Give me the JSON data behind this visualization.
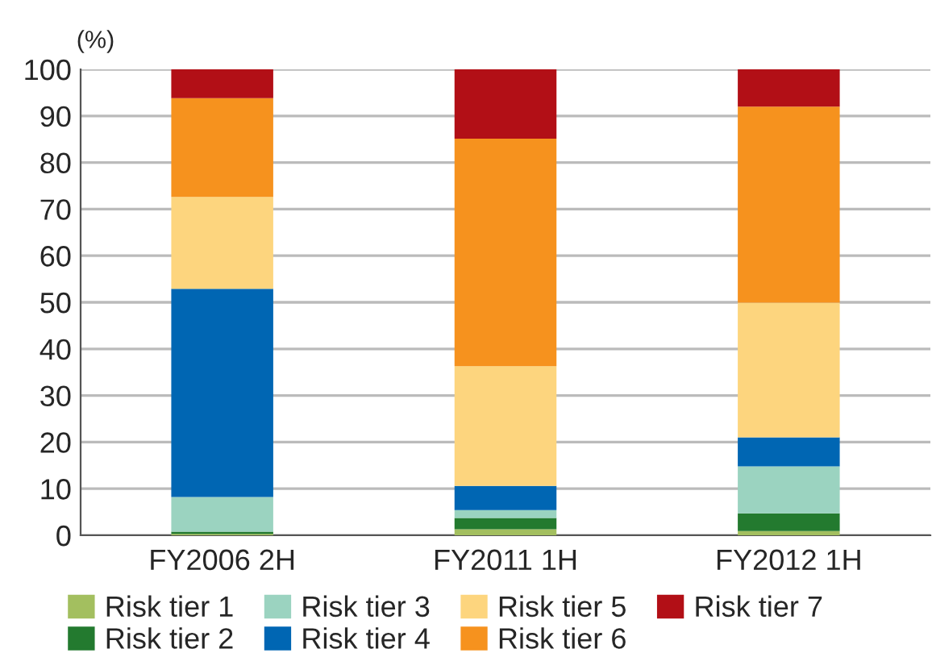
{
  "chart_data": {
    "type": "bar",
    "stacked": true,
    "ylabel": "(%)",
    "categories": [
      "FY2006 2H",
      "FY2011 1H",
      "FY2012 1H"
    ],
    "series": [
      {
        "name": "Risk tier 1",
        "color": "#a3bf5f",
        "values": [
          0.3,
          1.3,
          0.9
        ]
      },
      {
        "name": "Risk tier 2",
        "color": "#237a2f",
        "values": [
          0.5,
          2.4,
          3.8
        ]
      },
      {
        "name": "Risk tier 3",
        "color": "#9bd3c0",
        "values": [
          7.4,
          1.7,
          10.1
        ]
      },
      {
        "name": "Risk tier 4",
        "color": "#0066b3",
        "values": [
          44.7,
          5.2,
          6.2
        ]
      },
      {
        "name": "Risk tier 5",
        "color": "#fdd57e",
        "values": [
          19.7,
          25.7,
          28.9
        ]
      },
      {
        "name": "Risk tier 6",
        "color": "#f6921e",
        "values": [
          21.2,
          48.8,
          42.1
        ]
      },
      {
        "name": "Risk tier 7",
        "color": "#b20f16",
        "values": [
          6.2,
          14.9,
          8.0
        ]
      }
    ],
    "ylim": [
      0,
      100
    ],
    "yticks": [
      0,
      10,
      20,
      30,
      40,
      50,
      60,
      70,
      80,
      90,
      100
    ],
    "grid": "y",
    "legend": "bottom"
  }
}
